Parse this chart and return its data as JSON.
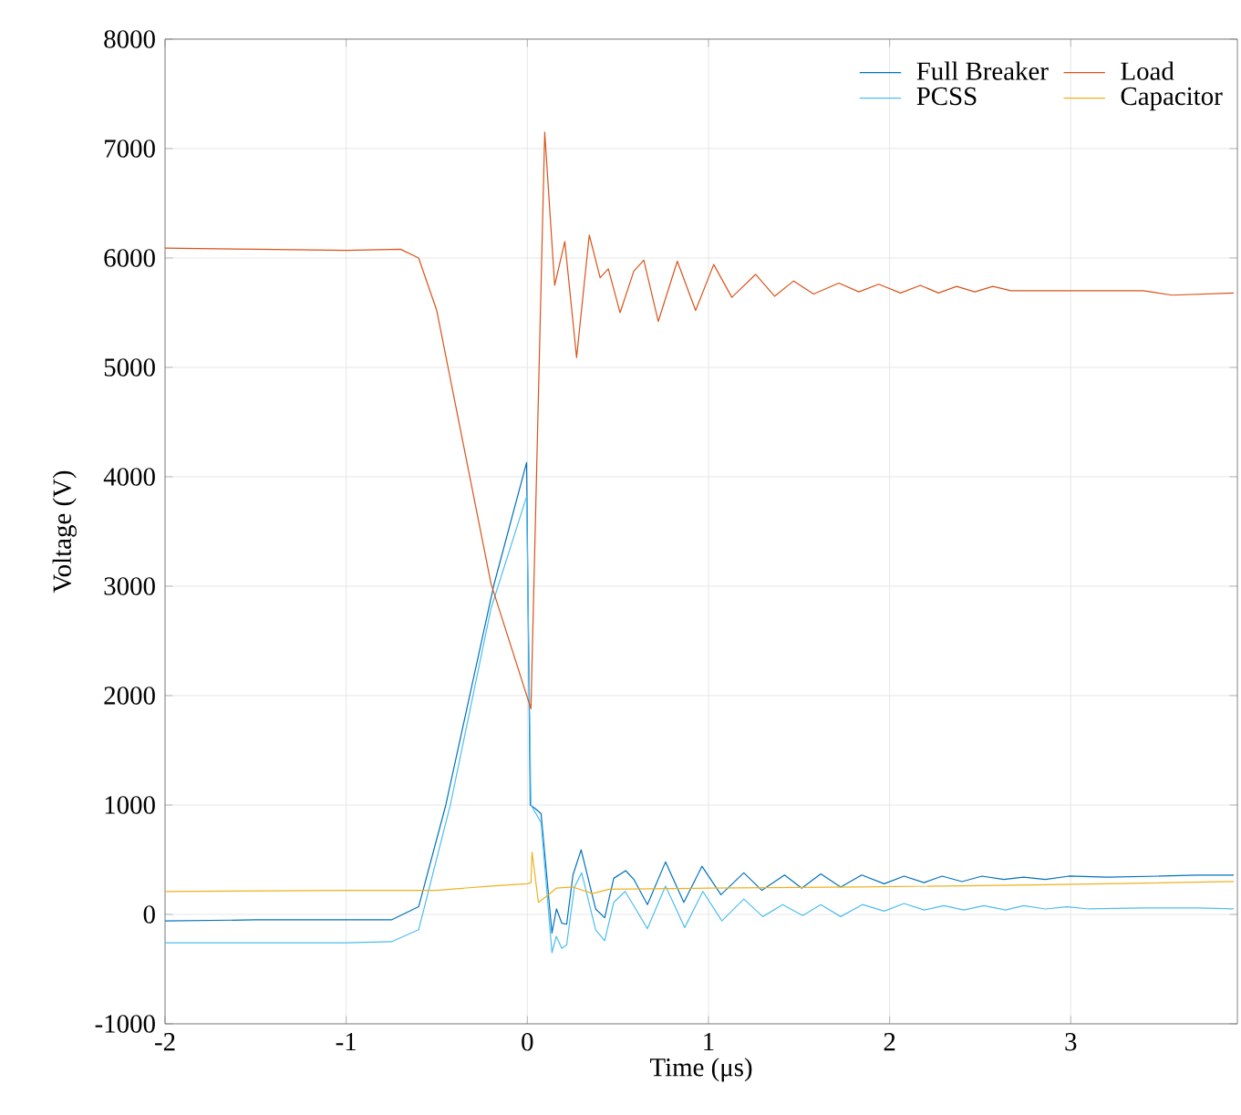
{
  "chart_data": {
    "type": "line",
    "xlabel": "Time (μs)",
    "ylabel": "Voltage (V)",
    "xlim": [
      -2,
      3.92
    ],
    "ylim": [
      -1000,
      8000
    ],
    "xticks": [
      -2,
      -1,
      0,
      1,
      2,
      3
    ],
    "yticks": [
      -1000,
      0,
      1000,
      2000,
      3000,
      4000,
      5000,
      6000,
      7000,
      8000
    ],
    "grid": true,
    "legend": "top right",
    "marker": "none",
    "line_style": "solid",
    "series": [
      {
        "name": "Full Breaker",
        "color": "#0072bd",
        "x": [
          -2,
          -1.5,
          -1,
          -0.75,
          -0.6,
          -0.45,
          -0.185,
          -0.004,
          0.016,
          0.041,
          0.076,
          0.136,
          0.161,
          0.19,
          0.217,
          0.252,
          0.297,
          0.377,
          0.427,
          0.477,
          0.543,
          0.588,
          0.663,
          0.763,
          0.864,
          0.964,
          1.069,
          1.195,
          1.295,
          1.42,
          1.515,
          1.62,
          1.73,
          1.846,
          1.97,
          2.08,
          2.19,
          2.29,
          2.4,
          2.51,
          2.63,
          2.74,
          2.86,
          2.99,
          3.2,
          3.5,
          3.7,
          3.9
        ],
        "values": [
          -60,
          -50,
          -50,
          -50,
          70,
          1000,
          3010,
          4130,
          1000,
          970,
          920,
          -170,
          50,
          -80,
          -90,
          360,
          590,
          50,
          -30,
          330,
          400,
          320,
          90,
          480,
          110,
          440,
          180,
          380,
          220,
          360,
          240,
          370,
          250,
          360,
          280,
          350,
          290,
          350,
          300,
          350,
          320,
          340,
          320,
          350,
          340,
          350,
          360,
          360
        ]
      },
      {
        "name": "PCSS",
        "color": "#4dbeee",
        "x": [
          -2,
          -1.5,
          -1,
          -0.75,
          -0.6,
          -0.425,
          -0.2,
          -0.004,
          0.02,
          0.076,
          0.136,
          0.16,
          0.19,
          0.217,
          0.26,
          0.3,
          0.377,
          0.427,
          0.477,
          0.54,
          0.663,
          0.763,
          0.869,
          0.969,
          1.074,
          1.195,
          1.3,
          1.41,
          1.52,
          1.62,
          1.73,
          1.85,
          1.97,
          2.08,
          2.19,
          2.3,
          2.41,
          2.52,
          2.64,
          2.74,
          2.86,
          2.98,
          3.1,
          3.4,
          3.7,
          3.9
        ],
        "values": [
          -260,
          -260,
          -260,
          -250,
          -140,
          1000,
          2800,
          3820,
          1000,
          840,
          -350,
          -200,
          -310,
          -280,
          250,
          380,
          -140,
          -240,
          110,
          210,
          -130,
          260,
          -120,
          210,
          -60,
          140,
          -20,
          90,
          -10,
          90,
          -20,
          90,
          30,
          100,
          40,
          80,
          40,
          80,
          40,
          80,
          50,
          70,
          50,
          60,
          60,
          50
        ]
      },
      {
        "name": "Load",
        "color": "#d95319",
        "x": [
          -2,
          -1.5,
          -1,
          -0.7,
          -0.6,
          -0.5,
          -0.2,
          0.02,
          0.096,
          0.151,
          0.207,
          0.272,
          0.342,
          0.402,
          0.447,
          0.512,
          0.588,
          0.643,
          0.723,
          0.828,
          0.929,
          1.029,
          1.129,
          1.26,
          1.365,
          1.47,
          1.58,
          1.72,
          1.83,
          1.94,
          2.06,
          2.17,
          2.27,
          2.37,
          2.47,
          2.57,
          2.67,
          3.0,
          3.4,
          3.56,
          3.9
        ],
        "values": [
          6090,
          6080,
          6070,
          6080,
          6000,
          5520,
          3020,
          1880,
          7150,
          5750,
          6150,
          5090,
          6210,
          5820,
          5900,
          5500,
          5880,
          5980,
          5420,
          5970,
          5520,
          5940,
          5640,
          5850,
          5650,
          5790,
          5670,
          5770,
          5690,
          5760,
          5680,
          5750,
          5680,
          5740,
          5690,
          5740,
          5700,
          5700,
          5700,
          5660,
          5680
        ]
      },
      {
        "name": "Capacitor",
        "color": "#edb120",
        "x": [
          -2,
          -1,
          -0.5,
          -0.2,
          0,
          0.02,
          0.026,
          0.061,
          0.11,
          0.16,
          0.252,
          0.36,
          0.45,
          1.0,
          1.83,
          2.8,
          3.9
        ],
        "values": [
          210,
          220,
          220,
          260,
          280,
          290,
          570,
          110,
          170,
          240,
          250,
          190,
          230,
          240,
          250,
          270,
          300
        ]
      }
    ]
  }
}
